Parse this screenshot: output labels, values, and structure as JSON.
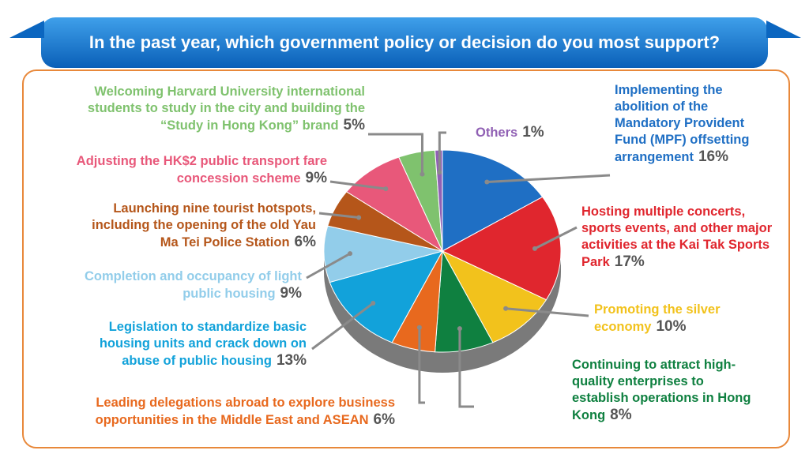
{
  "chart_data": {
    "type": "pie",
    "title": "In the past year, which government policy or decision do you most support?",
    "categories": [
      "Implementing the abolition of the Mandatory Provident Fund (MPF) offsetting arrangement",
      "Hosting multiple concerts, sports events, and other major activities at the Kai Tak Sports Park",
      "Promoting the silver economy",
      "Continuing to attract high-quality enterprises to establish operations in Hong Kong",
      "Leading delegations abroad to explore business opportunities in the Middle East and ASEAN",
      "Legislation to standardize basic housing units and crack down on abuse of public housing",
      "Completion and occupancy of light public housing",
      "Launching nine tourist hotspots, including the opening of the old Yau Ma Tei Police Station",
      "Adjusting the HK$2 public transport fare concession scheme",
      "Welcoming Harvard University international students to study in the city and building the “Study in Hong Kong” brand",
      "Others"
    ],
    "values": [
      16,
      17,
      10,
      8,
      6,
      13,
      9,
      6,
      9,
      5,
      1
    ],
    "value_labels": [
      "16%",
      "17%",
      "10%",
      "8%",
      "6%",
      "13%",
      "9%",
      "6%",
      "9%",
      "5%",
      "1%"
    ],
    "colors": [
      "#1f6fc4",
      "#e0262e",
      "#f2c21c",
      "#0f8040",
      "#e8691e",
      "#12a2da",
      "#92cdea",
      "#b5561a",
      "#e8587a",
      "#7fc26e",
      "#9060b4"
    ]
  }
}
